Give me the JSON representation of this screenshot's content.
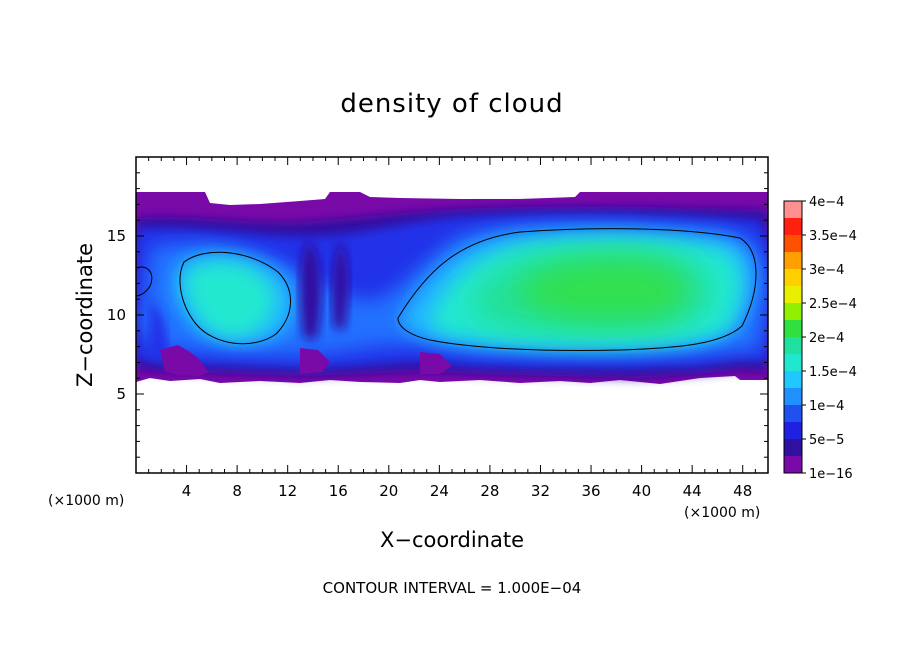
{
  "chart_data": {
    "type": "heatmap",
    "title": "density of cloud",
    "xlabel": "X−coordinate",
    "ylabel": "Z−coordinate",
    "x_unit_label": "(×1000 m)",
    "z_unit_label": "(×1000 m)",
    "xlim": [
      0,
      50
    ],
    "ylim": [
      0,
      20
    ],
    "x_ticks": [
      4,
      8,
      12,
      16,
      20,
      24,
      28,
      32,
      36,
      40,
      44,
      48
    ],
    "x_tick_labels": [
      "4",
      "8",
      "12",
      "16",
      "20",
      "24",
      "28",
      "32",
      "36",
      "40",
      "44",
      "48"
    ],
    "y_ticks": [
      5,
      10,
      15
    ],
    "y_tick_labels": [
      "5",
      "10",
      "15"
    ],
    "footnote": "CONTOUR INTERVAL = 1.000E−04",
    "contour_interval": 0.0001,
    "colorbar": {
      "labels": [
        "4e−4",
        "3.5e−4",
        "3e−4",
        "2.5e−4",
        "2e−4",
        "1.5e−4",
        "1e−4",
        "5e−5",
        "1e−16"
      ],
      "levels": [
        0.0004,
        0.00035,
        0.0003,
        0.00025,
        0.0002,
        0.00015,
        0.0001,
        5e-05,
        1e-16
      ],
      "colors": [
        "#ff9090",
        "#ff2010",
        "#ff5000",
        "#ffa000",
        "#ffd000",
        "#e8f000",
        "#90f000",
        "#30e040",
        "#20e0a0",
        "#20e8d0",
        "#20c8ff",
        "#2090ff",
        "#2050f0",
        "#2020e0",
        "#3010a0",
        "#7a0aa8"
      ]
    },
    "field": {
      "cloud_base_km": 6,
      "cloud_top_km": 17.5,
      "max_density_approx": 0.00017,
      "max_region": {
        "x_km": [
          30,
          42
        ],
        "z_km": [
          10.5,
          13.5
        ]
      }
    },
    "grid": false
  }
}
